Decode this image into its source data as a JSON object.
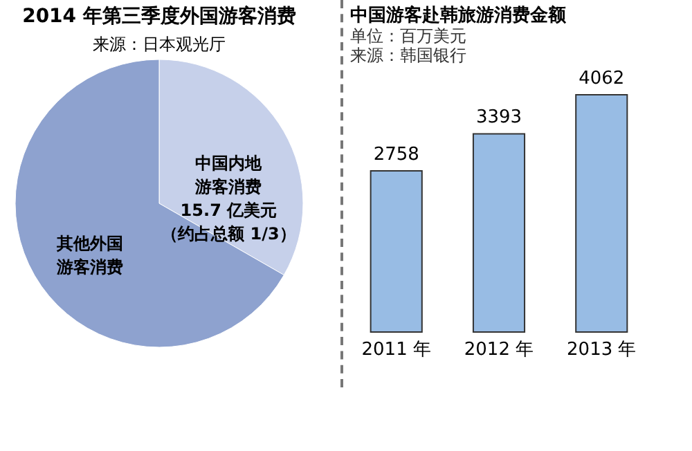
{
  "chart_data": [
    {
      "type": "pie",
      "title": "2014 年第三季度外国游客消费",
      "categories": [
        "中国内地游客消费",
        "其他外国游客消费"
      ],
      "values": [
        33.3,
        66.7
      ],
      "colors": [
        "#c6d0ea",
        "#8ea2cf"
      ],
      "annotations": [
        "来源：日本观光厅",
        "15.7 亿美元",
        "（约占总额 1/3）"
      ]
    },
    {
      "type": "bar",
      "title": "中国游客赴韩旅游消费金额",
      "categories": [
        "2011 年",
        "2012 年",
        "2013 年"
      ],
      "values": [
        2758,
        3393,
        4062
      ],
      "color": "#98bce4",
      "data_labels": true,
      "annotations": [
        "单位：百万美元",
        "来源：韩国银行"
      ]
    }
  ]
}
